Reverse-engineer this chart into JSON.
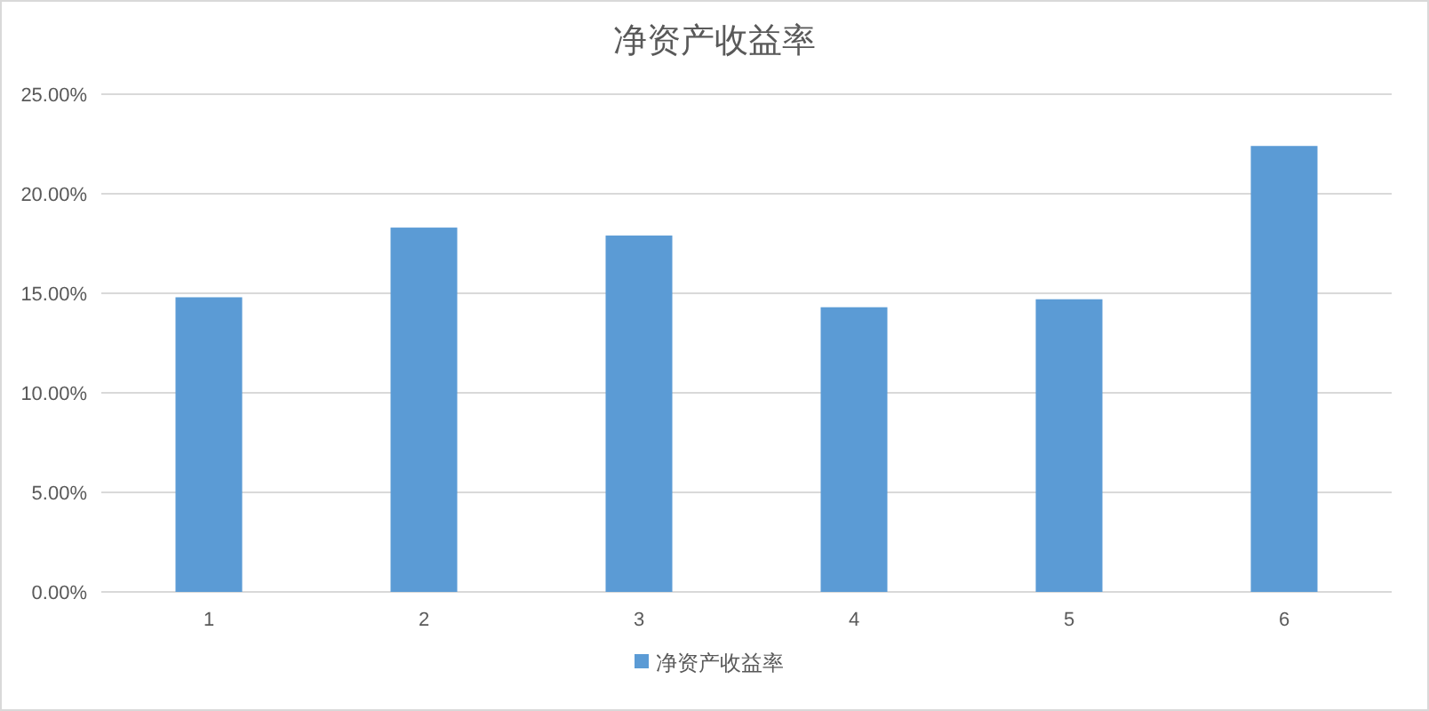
{
  "chart_data": {
    "type": "bar",
    "title": "净资产收益率",
    "categories": [
      "1",
      "2",
      "3",
      "4",
      "5",
      "6"
    ],
    "series": [
      {
        "name": "净资产收益率",
        "color": "#5b9bd5",
        "values": [
          14.8,
          18.3,
          17.9,
          14.3,
          14.7,
          22.4
        ]
      }
    ],
    "ylim": [
      0,
      25
    ],
    "yticks": [
      {
        "value": 0,
        "label": "0.00%"
      },
      {
        "value": 5,
        "label": "5.00%"
      },
      {
        "value": 10,
        "label": "10.00%"
      },
      {
        "value": 15,
        "label": "15.00%"
      },
      {
        "value": 20,
        "label": "20.00%"
      },
      {
        "value": 25,
        "label": "25.00%"
      }
    ],
    "grid": "y",
    "legend": "bottom"
  }
}
